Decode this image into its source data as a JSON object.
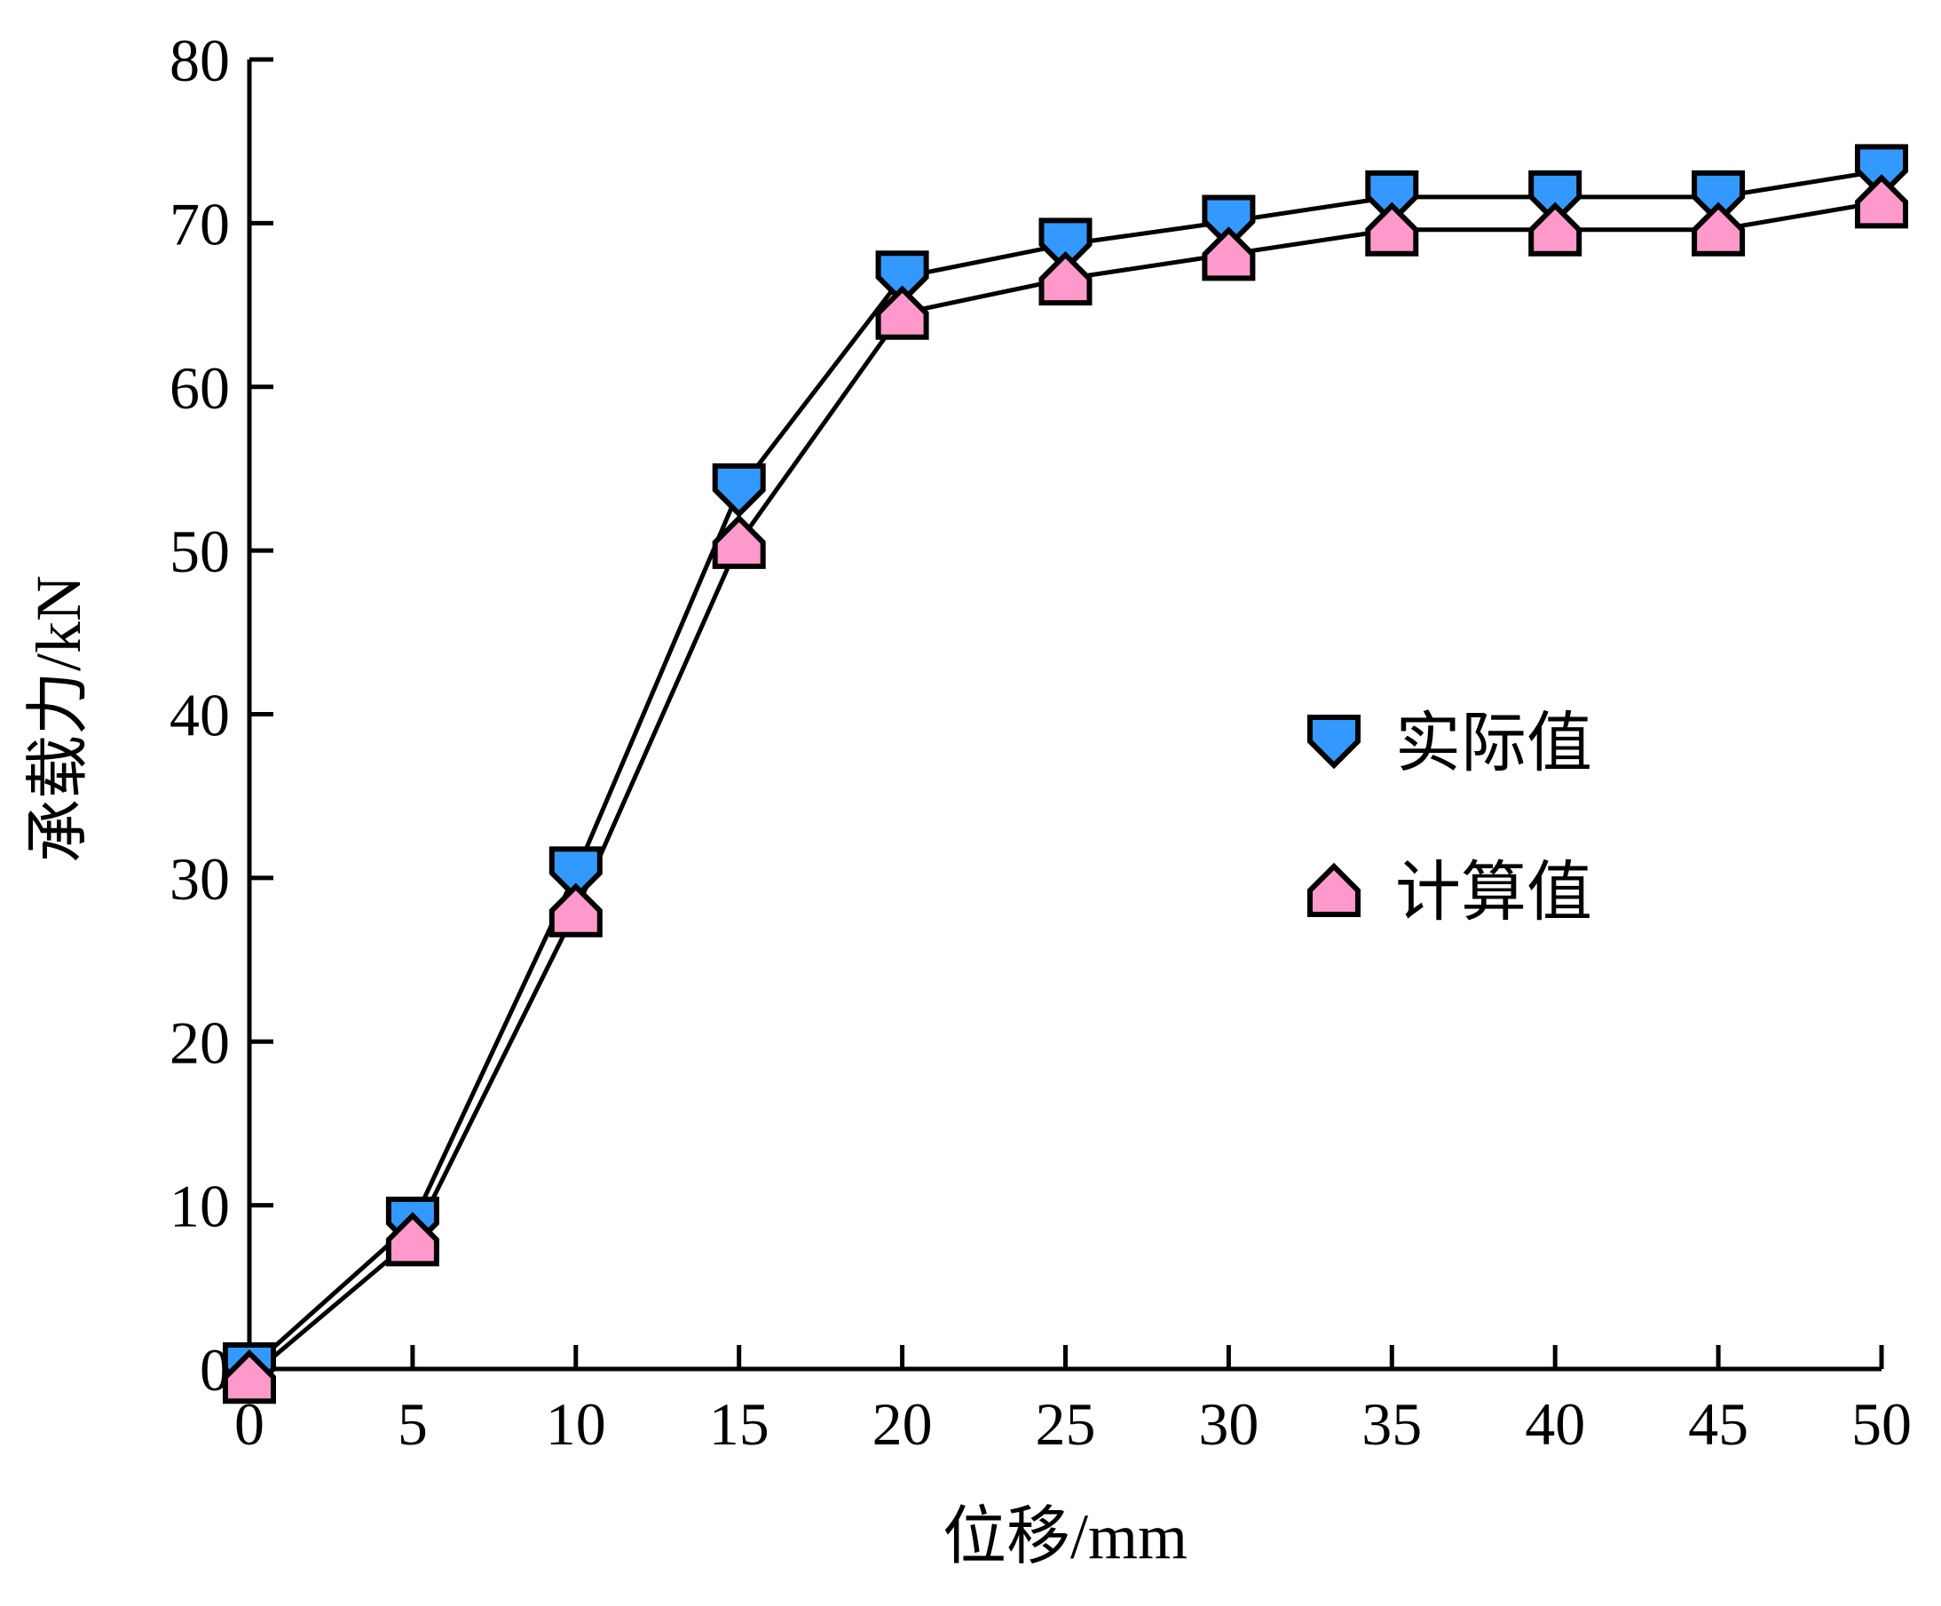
{
  "chart_data": {
    "type": "line",
    "title": "",
    "xlabel": "位移/mm",
    "ylabel": "承载力/kN",
    "x": [
      0,
      5,
      10,
      15,
      20,
      25,
      30,
      35,
      40,
      45,
      50
    ],
    "xlim": [
      0,
      50
    ],
    "ylim": [
      0,
      80
    ],
    "xticks": [
      "0",
      "5",
      "10",
      "15",
      "20",
      "25",
      "30",
      "35",
      "40",
      "45",
      "50"
    ],
    "yticks": [
      "0",
      "10",
      "20",
      "30",
      "40",
      "50",
      "60",
      "70",
      "80"
    ],
    "grid": false,
    "legend_position": "center-right",
    "series": [
      {
        "name": "实际值",
        "color": "#3399ff",
        "marker": "down-pentagon",
        "values": [
          0,
          8.9,
          30.3,
          53.7,
          66.7,
          68.7,
          70.1,
          71.6,
          71.6,
          71.6,
          73.2
        ]
      },
      {
        "name": "计算值",
        "color": "#ff99cc",
        "marker": "up-pentagon",
        "values": [
          -0.5,
          7.9,
          28,
          50.5,
          64.5,
          66.6,
          68.1,
          69.6,
          69.6,
          69.6,
          71.3
        ]
      }
    ]
  }
}
